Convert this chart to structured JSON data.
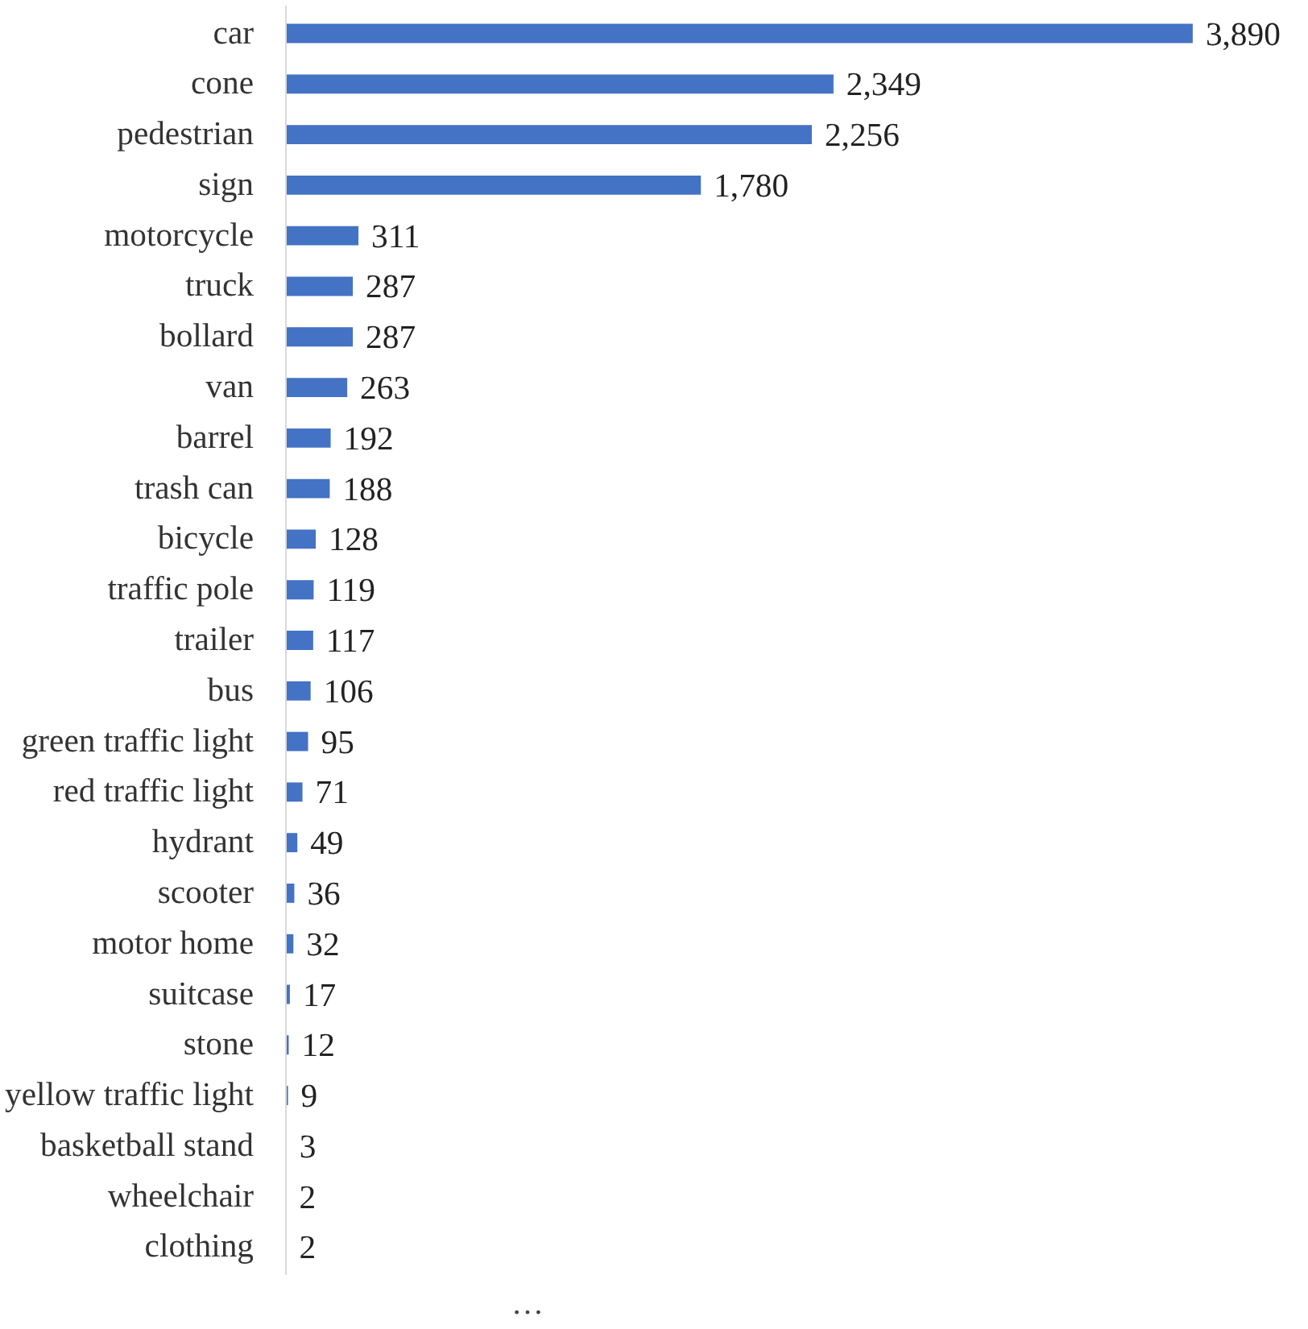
{
  "chart_data": {
    "type": "bar",
    "orientation": "horizontal",
    "color": "#4472c4",
    "categories": [
      "car",
      "cone",
      "pedestrian",
      "sign",
      "motorcycle",
      "truck",
      "bollard",
      "van",
      "barrel",
      "trash can",
      "bicycle",
      "traffic pole",
      "trailer",
      "bus",
      "green traffic light",
      "red traffic light",
      "hydrant",
      "scooter",
      "motor home",
      "suitcase",
      "stone",
      "yellow traffic light",
      "basketball stand",
      "wheelchair",
      "clothing"
    ],
    "values": [
      3890,
      2349,
      2256,
      1780,
      311,
      287,
      287,
      263,
      192,
      188,
      128,
      119,
      117,
      106,
      95,
      71,
      49,
      36,
      32,
      17,
      12,
      9,
      3,
      2,
      2
    ],
    "value_labels": [
      "3,890",
      "2,349",
      "2,256",
      "1,780",
      "311",
      "287",
      "287",
      "263",
      "192",
      "188",
      "128",
      "119",
      "117",
      "106",
      "95",
      "71",
      "49",
      "36",
      "32",
      "17",
      "12",
      "9",
      "3",
      "2",
      "2"
    ],
    "annotations": [
      "…"
    ],
    "grid": false
  }
}
